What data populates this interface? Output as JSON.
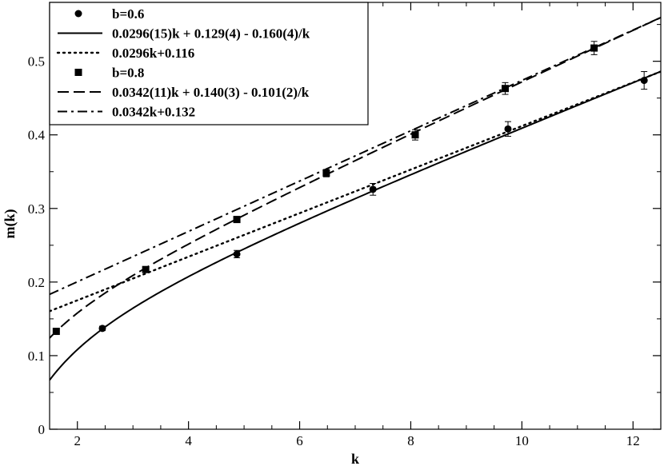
{
  "chart_data": {
    "type": "scatter",
    "xlabel": "k",
    "ylabel": "m(k)",
    "xlim": [
      1.5,
      12.5
    ],
    "ylim": [
      0,
      0.58
    ],
    "xticks": [
      2,
      4,
      6,
      8,
      10,
      12
    ],
    "yticks": [
      0,
      0.1,
      0.2,
      0.3,
      0.4,
      0.5
    ],
    "grid": false,
    "legend_position": "top-left",
    "series": [
      {
        "name": "b=0.6",
        "kind": "points",
        "marker": "circle",
        "points": [
          {
            "x": 2.45,
            "y": 0.137,
            "err": 0.003
          },
          {
            "x": 4.87,
            "y": 0.238,
            "err": 0.005
          },
          {
            "x": 7.32,
            "y": 0.326,
            "err": 0.008
          },
          {
            "x": 9.75,
            "y": 0.408,
            "err": 0.01
          },
          {
            "x": 12.2,
            "y": 0.474,
            "err": 0.012
          }
        ]
      },
      {
        "name": "0.0296(15)k + 0.129(4) - 0.160(4)/k",
        "kind": "curve",
        "dash": "solid",
        "a": 0.0296,
        "b": 0.129,
        "c": -0.16
      },
      {
        "name": "0.0296k+0.116",
        "kind": "curve",
        "dash": "dotted",
        "a": 0.0296,
        "b": 0.116,
        "c": 0
      },
      {
        "name": "b=0.8",
        "kind": "points",
        "marker": "square",
        "points": [
          {
            "x": 1.62,
            "y": 0.133,
            "err": 0.003
          },
          {
            "x": 3.23,
            "y": 0.217,
            "err": 0.004
          },
          {
            "x": 4.87,
            "y": 0.285,
            "err": 0.004
          },
          {
            "x": 6.48,
            "y": 0.348,
            "err": 0.005
          },
          {
            "x": 8.08,
            "y": 0.4,
            "err": 0.007
          },
          {
            "x": 9.7,
            "y": 0.463,
            "err": 0.008
          },
          {
            "x": 11.3,
            "y": 0.518,
            "err": 0.009
          }
        ]
      },
      {
        "name": "0.0342(11)k + 0.140(3) - 0.101(2)/k",
        "kind": "curve",
        "dash": "dashed",
        "a": 0.0342,
        "b": 0.14,
        "c": -0.101
      },
      {
        "name": "0.0342k+0.132",
        "kind": "curve",
        "dash": "dashdot",
        "a": 0.0342,
        "b": 0.132,
        "c": 0
      }
    ]
  }
}
